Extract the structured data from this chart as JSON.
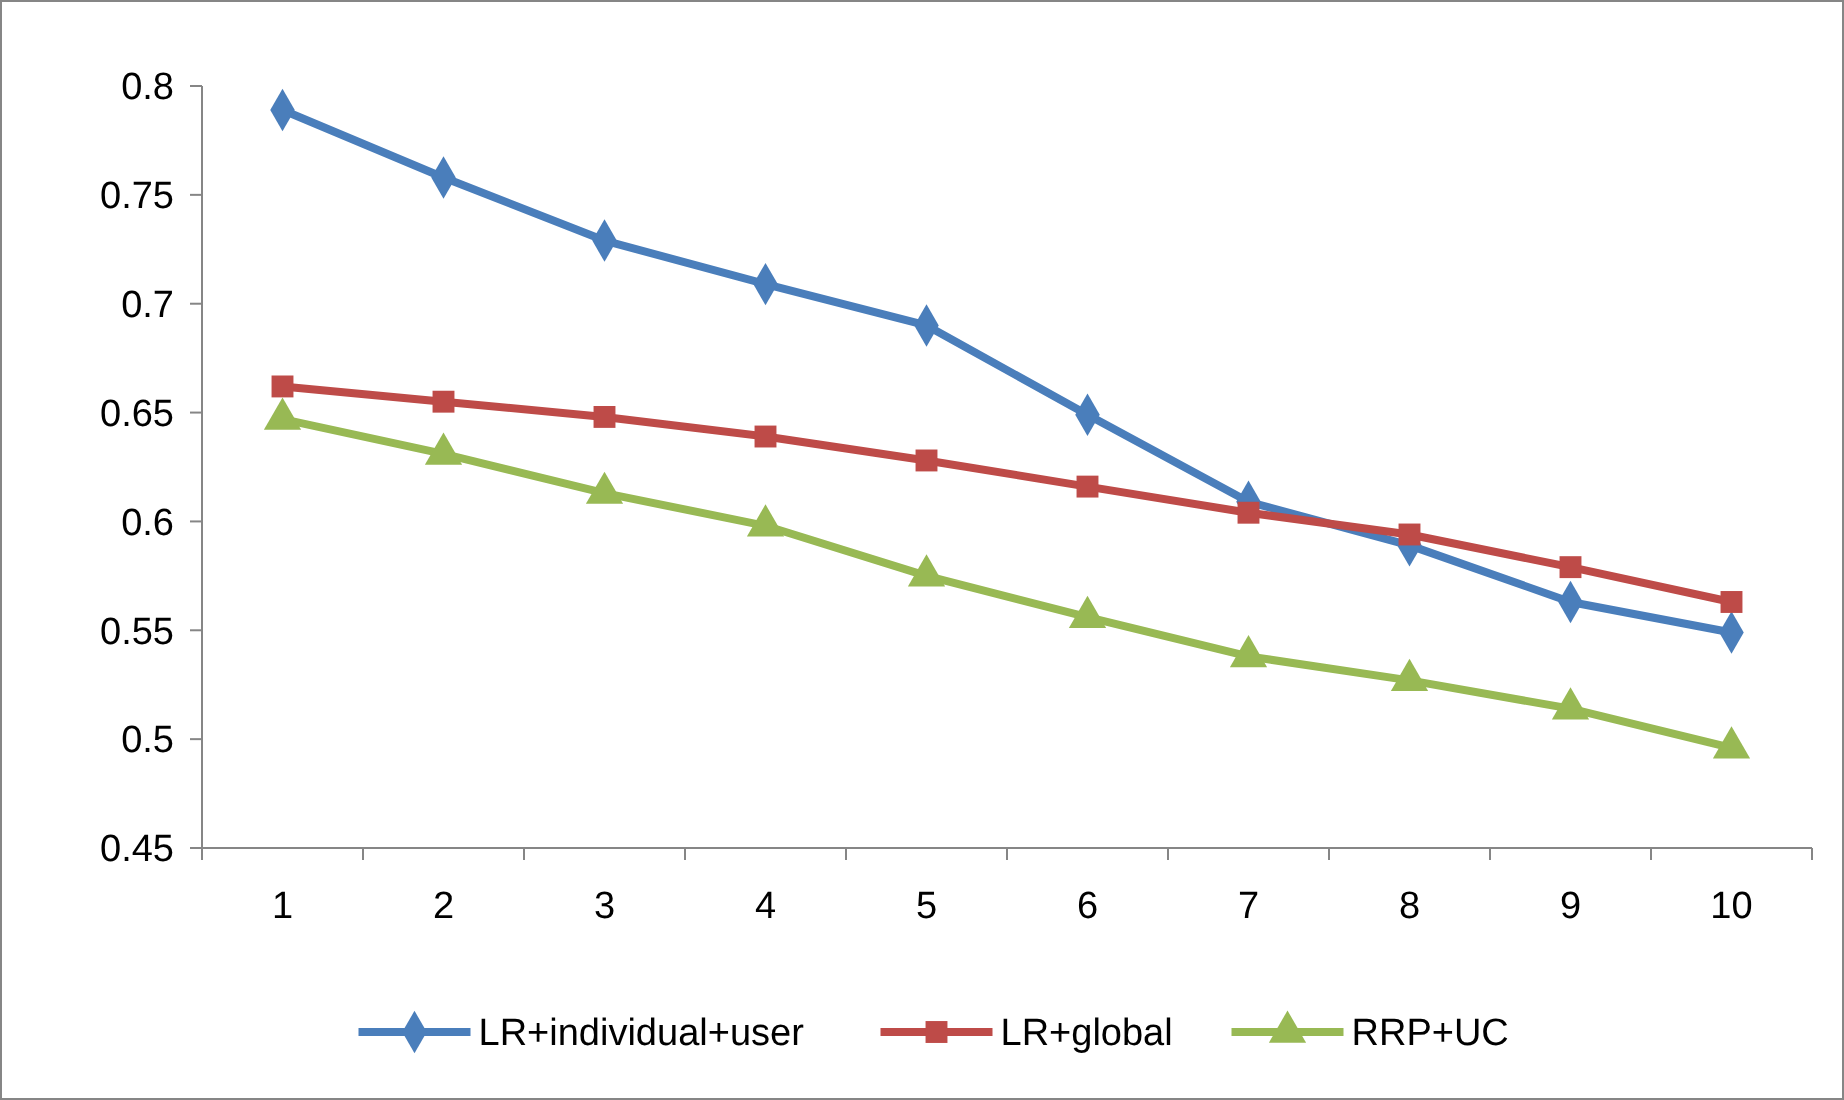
{
  "chart_data": {
    "type": "line",
    "categories": [
      "1",
      "2",
      "3",
      "4",
      "5",
      "6",
      "7",
      "8",
      "9",
      "10"
    ],
    "ylim": [
      0.45,
      0.8
    ],
    "yticks": [
      0.45,
      0.5,
      0.55,
      0.6,
      0.65,
      0.7,
      0.75,
      0.8
    ],
    "grid": false,
    "legend": "bottom",
    "series": [
      {
        "name": "LR+individual+user",
        "color": "#4a7ebb",
        "marker": "diamond",
        "values": [
          0.789,
          0.758,
          0.729,
          0.709,
          0.69,
          0.649,
          0.609,
          0.589,
          0.563,
          0.549
        ]
      },
      {
        "name": "LR+global",
        "color": "#be4b48",
        "marker": "square",
        "values": [
          0.662,
          0.655,
          0.648,
          0.639,
          0.628,
          0.616,
          0.604,
          0.594,
          0.579,
          0.563
        ]
      },
      {
        "name": "RRP+UC",
        "color": "#98b954",
        "marker": "triangle",
        "values": [
          0.647,
          0.631,
          0.613,
          0.598,
          0.575,
          0.556,
          0.538,
          0.527,
          0.514,
          0.496
        ]
      }
    ]
  }
}
